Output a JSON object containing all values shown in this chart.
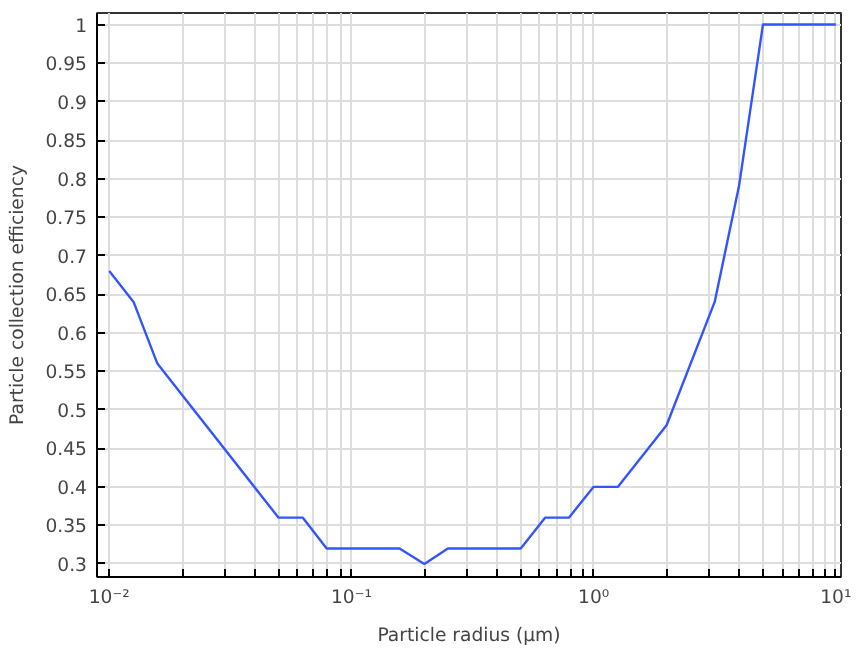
{
  "chart_data": {
    "type": "line",
    "xlabel": "Particle radius (µm)",
    "ylabel": "Particle collection efficiency",
    "log": "x",
    "grid": true,
    "line_style": "solid",
    "marker": "none",
    "series": [
      {
        "color": "#3355ff",
        "x": [
          0.01,
          0.0126,
          0.0158,
          0.05,
          0.063,
          0.079,
          0.158,
          0.2,
          0.25,
          0.5,
          0.63,
          0.79,
          1.0,
          1.26,
          2.0,
          3.16,
          3.98,
          5.0,
          10
        ],
        "values": [
          0.68,
          0.64,
          0.56,
          0.36,
          0.36,
          0.32,
          0.32,
          0.3,
          0.32,
          0.32,
          0.36,
          0.36,
          0.4,
          0.4,
          0.48,
          0.64,
          0.79,
          1.0,
          1.0
        ]
      }
    ],
    "xlim": [
      0.0089,
      10.5
    ],
    "ylim": [
      0.283,
      1.015
    ],
    "xticks": [
      {
        "value": 0.01,
        "label": "10⁻²"
      },
      {
        "value": 0.02,
        "label": null
      },
      {
        "value": 0.03,
        "label": null
      },
      {
        "value": 0.04,
        "label": null
      },
      {
        "value": 0.05,
        "label": null
      },
      {
        "value": 0.06,
        "label": null
      },
      {
        "value": 0.07,
        "label": null
      },
      {
        "value": 0.08,
        "label": null
      },
      {
        "value": 0.09,
        "label": null
      },
      {
        "value": 0.1,
        "label": "10⁻¹"
      },
      {
        "value": 0.2,
        "label": null
      },
      {
        "value": 0.3,
        "label": null
      },
      {
        "value": 0.4,
        "label": null
      },
      {
        "value": 0.5,
        "label": null
      },
      {
        "value": 0.6,
        "label": null
      },
      {
        "value": 0.7,
        "label": null
      },
      {
        "value": 0.8,
        "label": null
      },
      {
        "value": 0.9,
        "label": null
      },
      {
        "value": 1,
        "label": "10⁰"
      },
      {
        "value": 2,
        "label": null
      },
      {
        "value": 3,
        "label": null
      },
      {
        "value": 4,
        "label": null
      },
      {
        "value": 5,
        "label": null
      },
      {
        "value": 6,
        "label": null
      },
      {
        "value": 7,
        "label": null
      },
      {
        "value": 8,
        "label": null
      },
      {
        "value": 9,
        "label": null
      },
      {
        "value": 10,
        "label": "10¹"
      }
    ],
    "yticks": [
      0.3,
      0.35,
      0.4,
      0.45,
      0.5,
      0.55,
      0.6,
      0.65,
      0.7,
      0.75,
      0.8,
      0.85,
      0.9,
      0.95,
      1
    ]
  }
}
